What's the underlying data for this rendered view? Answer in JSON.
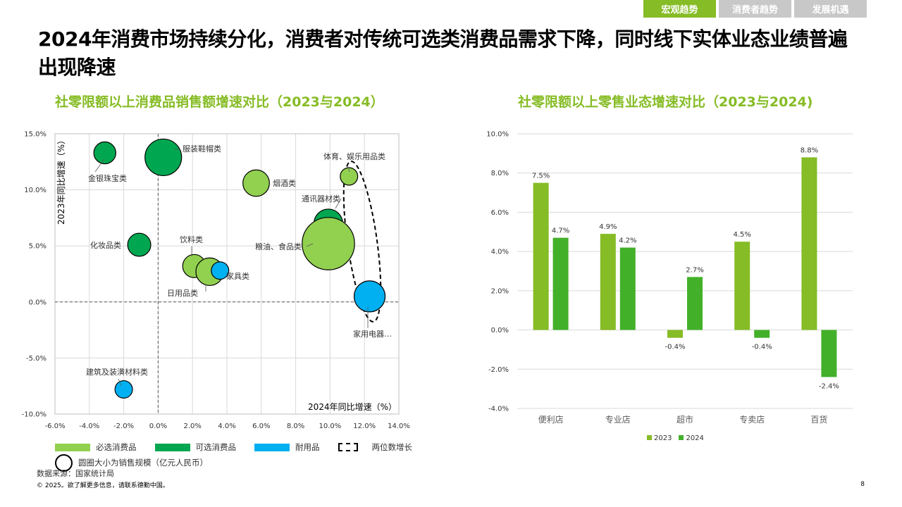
{
  "tabs": [
    {
      "label": "宏观趋势",
      "active": true
    },
    {
      "label": "消费者趋势",
      "active": false
    },
    {
      "label": "发展机遇",
      "active": false
    }
  ],
  "headline": "2024年消费市场持续分化，消费者对传统可选类消费品需求下降，同时线下实体业态业绩普遍出现降速",
  "colors": {
    "accent": "#86bc25",
    "essential": "#92d050",
    "discretionary": "#00a650",
    "durable": "#00b0f0",
    "series2023": "#86bc25",
    "series2024": "#43b02a"
  },
  "chart_data": [
    {
      "type": "scatter",
      "title": "社零限额以上消费品销售额增速对比（2023与2024）",
      "xlabel": "2024年同比增速（%）",
      "ylabel": "2023年同比增速（%）",
      "xlim": [
        -6,
        14
      ],
      "ylim": [
        -10,
        15
      ],
      "x_ticks": [
        "-6.0%",
        "-4.0%",
        "-2.0%",
        "0.0%",
        "2.0%",
        "4.0%",
        "6.0%",
        "8.0%",
        "10.0%",
        "12.0%",
        "14.0%"
      ],
      "y_ticks": [
        "-10.0%",
        "-5.0%",
        "0.0%",
        "5.0%",
        "10.0%",
        "15.0%"
      ],
      "grid": true,
      "points": [
        {
          "name": "金银珠宝类",
          "x": -3.1,
          "y": 13.3,
          "category": "discretionary",
          "size": 1.2
        },
        {
          "name": "服装鞋帽类",
          "x": 0.3,
          "y": 12.9,
          "category": "discretionary",
          "size": 2.5
        },
        {
          "name": "烟酒类",
          "x": 5.7,
          "y": 10.6,
          "category": "essential",
          "size": 1.6
        },
        {
          "name": "体育、娱乐用品类",
          "x": 11.1,
          "y": 11.2,
          "category": "essential",
          "size": 0.8
        },
        {
          "name": "通讯器材类",
          "x": 9.9,
          "y": 7.0,
          "category": "discretionary",
          "size": 1.8
        },
        {
          "name": "粮油、食品类",
          "x": 9.9,
          "y": 5.2,
          "category": "essential",
          "size": 3.9
        },
        {
          "name": "化妆品类",
          "x": -1.1,
          "y": 5.1,
          "category": "discretionary",
          "size": 1.3
        },
        {
          "name": "饮料类",
          "x": 2.1,
          "y": 3.2,
          "category": "essential",
          "size": 1.3
        },
        {
          "name": "日用品类",
          "x": 3.0,
          "y": 2.7,
          "category": "essential",
          "size": 1.7
        },
        {
          "name": "家具类",
          "x": 3.6,
          "y": 2.8,
          "category": "durable",
          "size": 0.8
        },
        {
          "name": "家用电器…",
          "x": 12.3,
          "y": 0.5,
          "category": "durable",
          "size": 2.0
        },
        {
          "name": "建筑及装潢材料类",
          "x": -2.0,
          "y": -7.8,
          "category": "durable",
          "size": 0.8
        }
      ],
      "legend": [
        {
          "label": "必选消费品",
          "category": "essential"
        },
        {
          "label": "可选消费品",
          "category": "discretionary"
        },
        {
          "label": "耐用品",
          "category": "durable"
        },
        {
          "label": "两位数增长",
          "kind": "dashed"
        },
        {
          "label": "圆圈大小为销售规模（亿元人民币）",
          "kind": "circle"
        }
      ],
      "legend_placement": "bottom"
    },
    {
      "type": "bar",
      "title": "社零限额以上零售业态增速对比（2023与2024)",
      "categories": [
        "便利店",
        "专业店",
        "超市",
        "专卖店",
        "百货"
      ],
      "series": [
        {
          "name": "2023",
          "values": [
            7.5,
            4.9,
            -0.4,
            4.5,
            8.8
          ],
          "labels": [
            "7.5%",
            "4.9%",
            "-0.4%",
            "4.5%",
            "8.8%"
          ]
        },
        {
          "name": "2024",
          "values": [
            4.7,
            4.2,
            2.7,
            -0.4,
            -2.4
          ],
          "labels": [
            "4.7%",
            "4.2%",
            "2.7%",
            "-0.4%",
            "-2.4%"
          ]
        }
      ],
      "ylim": [
        -4,
        10
      ],
      "y_ticks": [
        "-4.0%",
        "-2.0%",
        "0.0%",
        "2.0%",
        "4.0%",
        "6.0%",
        "8.0%",
        "10.0%"
      ],
      "grid": true,
      "legend_placement": "bottom"
    }
  ],
  "source": "数据来源：国家统计局",
  "copyright": "© 2025。欲了解更多信息，请联系德勤中国。",
  "page_number": "8"
}
